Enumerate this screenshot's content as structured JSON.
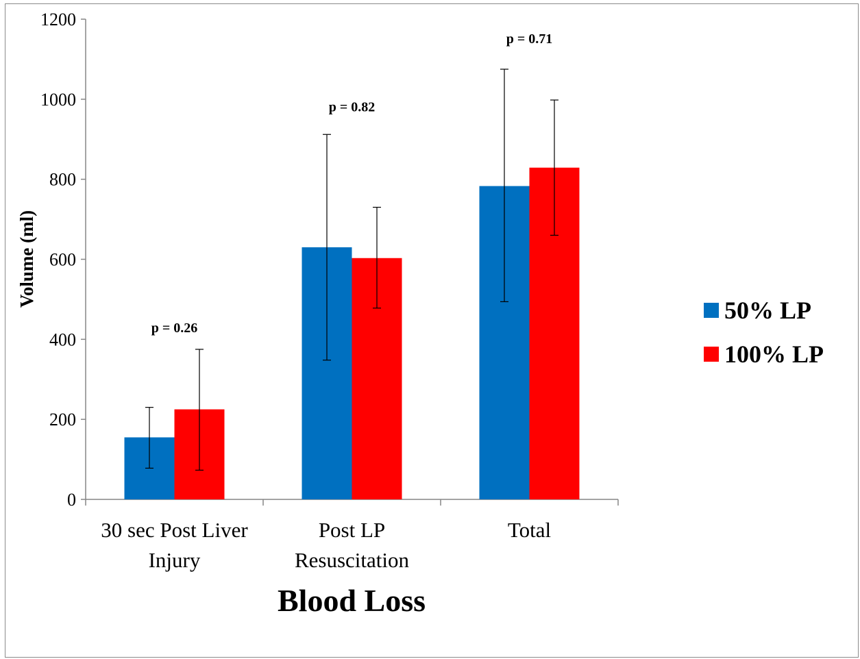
{
  "chart_data": {
    "type": "bar",
    "xlabel": "Blood Loss",
    "ylabel": "Volume (ml)",
    "ylim": [
      0,
      1200
    ],
    "yticks": [
      0,
      200,
      400,
      600,
      800,
      1000,
      1200
    ],
    "categories": [
      [
        "30 sec Post Liver",
        "Injury"
      ],
      [
        "Post LP",
        "Resuscitation"
      ],
      [
        "Total"
      ]
    ],
    "series": [
      {
        "name": "50% LP",
        "color": "#0070C0",
        "values": [
          155,
          630,
          783
        ],
        "error_low": [
          78,
          348,
          494
        ],
        "error_high": [
          230,
          912,
          1075
        ]
      },
      {
        "name": "100% LP",
        "color": "#FF0000",
        "values": [
          225,
          603,
          829
        ],
        "error_low": [
          73,
          478,
          660
        ],
        "error_high": [
          375,
          730,
          998
        ]
      }
    ],
    "annotations": [
      {
        "text": "p = 0.26",
        "category": 0,
        "y": 418
      },
      {
        "text": "p = 0.82",
        "category": 1,
        "y": 970
      },
      {
        "text": "p = 0.71",
        "category": 2,
        "y": 1140
      }
    ],
    "legend": "right",
    "grid": false
  }
}
